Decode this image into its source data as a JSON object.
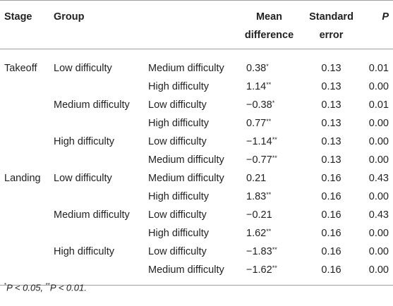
{
  "headers": {
    "stage": "Stage",
    "group": "Group",
    "compare": "",
    "mean_line1": "Mean",
    "mean_line2": "difference",
    "se_line1": "Standard",
    "se_line2": "error",
    "p": "P"
  },
  "rows": [
    {
      "stage": "Takeoff",
      "group": "Low difficulty",
      "compare": "Medium difficulty",
      "mean": "0.38",
      "stars": "*",
      "se": "0.13",
      "p": "0.01"
    },
    {
      "stage": "",
      "group": "",
      "compare": "High difficulty",
      "mean": "1.14",
      "stars": "**",
      "se": "0.13",
      "p": "0.00"
    },
    {
      "stage": "",
      "group": "Medium difficulty",
      "compare": "Low difficulty",
      "mean": "−0.38",
      "stars": "*",
      "se": "0.13",
      "p": "0.01"
    },
    {
      "stage": "",
      "group": "",
      "compare": "High difficulty",
      "mean": "0.77",
      "stars": "**",
      "se": "0.13",
      "p": "0.00"
    },
    {
      "stage": "",
      "group": "High difficulty",
      "compare": "Low difficulty",
      "mean": "−1.14",
      "stars": "**",
      "se": "0.13",
      "p": "0.00"
    },
    {
      "stage": "",
      "group": "",
      "compare": "Medium difficulty",
      "mean": "−0.77",
      "stars": "**",
      "se": "0.13",
      "p": "0.00"
    },
    {
      "stage": "Landing",
      "group": "Low difficulty",
      "compare": "Medium difficulty",
      "mean": "0.21",
      "stars": "",
      "se": "0.16",
      "p": "0.43"
    },
    {
      "stage": "",
      "group": "",
      "compare": "High difficulty",
      "mean": "1.83",
      "stars": "**",
      "se": "0.16",
      "p": "0.00"
    },
    {
      "stage": "",
      "group": "Medium difficulty",
      "compare": "Low difficulty",
      "mean": "−0.21",
      "stars": "",
      "se": "0.16",
      "p": "0.43"
    },
    {
      "stage": "",
      "group": "",
      "compare": "High difficulty",
      "mean": "1.62",
      "stars": "**",
      "se": "0.16",
      "p": "0.00"
    },
    {
      "stage": "",
      "group": "High difficulty",
      "compare": "Low difficulty",
      "mean": "−1.83",
      "stars": "**",
      "se": "0.16",
      "p": "0.00"
    },
    {
      "stage": "",
      "group": "",
      "compare": "Medium difficulty",
      "mean": "−1.62",
      "stars": "**",
      "se": "0.16",
      "p": "0.00"
    }
  ],
  "footnote": {
    "mark1": "*",
    "text1": "P < 0.05,",
    "mark2": "**",
    "text2": "P < 0.01."
  }
}
